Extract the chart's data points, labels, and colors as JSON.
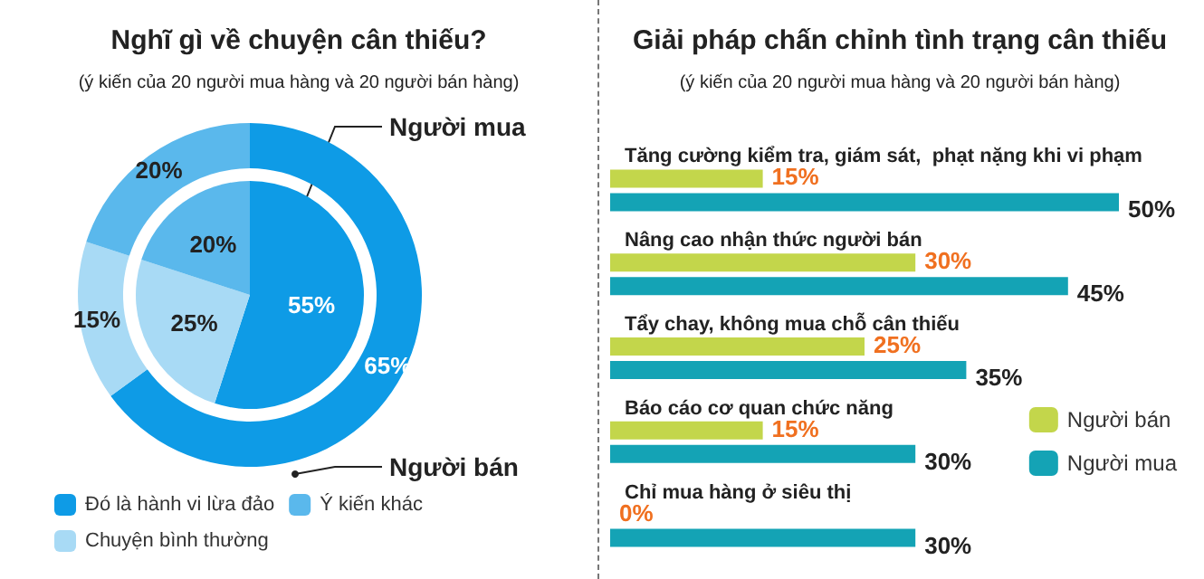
{
  "chart_data": [
    {
      "type": "donut",
      "title": "Nghĩ gì về chuyện cân thiếu?",
      "subtitle": "(ý kiến của 20 người mua hàng và 20 người bán hàng)",
      "categories": [
        "Đó là hành vi lừa đảo",
        "Chuyện bình thường",
        "Ý kiến khác"
      ],
      "legend": "bottom",
      "series": [
        {
          "name": "Người mua",
          "values": [
            55,
            25,
            20
          ],
          "value_labels": [
            "55%",
            "25%",
            "20%"
          ],
          "colors": [
            "#0e9be6",
            "#a8daf5",
            "#5ab8ec"
          ]
        },
        {
          "name": "Người bán",
          "values": [
            65,
            15,
            20
          ],
          "value_labels": [
            "65%",
            "15%",
            "20%"
          ],
          "colors": [
            "#0e9be6",
            "#a8daf5",
            "#5ab8ec"
          ]
        }
      ]
    },
    {
      "type": "bar",
      "orientation": "horizontal",
      "title": "Giải pháp chấn chỉnh tình trạng cân thiếu",
      "subtitle": "(ý kiến của 20 người mua hàng và 20 người bán hàng)",
      "categories": [
        "Tăng cường kiểm tra, giám sát,  phạt nặng khi vi phạm",
        "Nâng cao nhận thức người bán",
        "Tẩy chay, không mua chỗ cân thiếu",
        "Báo cáo cơ quan chức năng",
        "Chỉ mua hàng ở siêu thị"
      ],
      "legend": "right",
      "series": [
        {
          "name": "Người bán",
          "color": "#c3d64b",
          "values": [
            15,
            30,
            25,
            15,
            0
          ],
          "value_labels": [
            "15%",
            "30%",
            "25%",
            "15%",
            "0%"
          ]
        },
        {
          "name": "Người mua",
          "color": "#14a3b5",
          "values": [
            50,
            45,
            35,
            30,
            30
          ],
          "value_labels": [
            "50%",
            "45%",
            "35%",
            "30%",
            "30%"
          ]
        }
      ]
    }
  ]
}
